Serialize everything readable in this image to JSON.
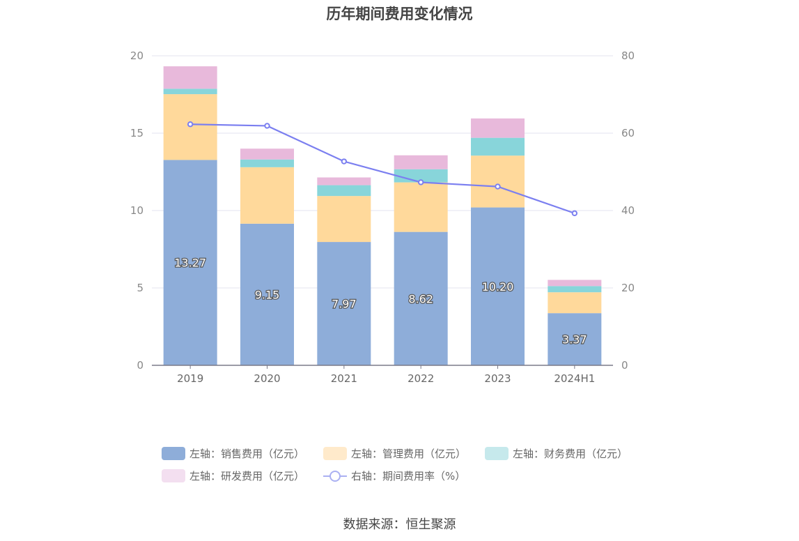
{
  "chart_data": {
    "type": "bar",
    "title": "历年期间费用变化情况",
    "categories": [
      "2019",
      "2020",
      "2021",
      "2022",
      "2023",
      "2024H1"
    ],
    "stacked": true,
    "y_left": {
      "ylim": [
        0,
        20
      ],
      "ticks": [
        "0",
        "5",
        "10",
        "15",
        "20"
      ]
    },
    "y_right": {
      "ylim": [
        0,
        80
      ],
      "ticks": [
        "0",
        "20",
        "40",
        "60",
        "80"
      ]
    },
    "grid": true,
    "legend_position": "bottom",
    "series": [
      {
        "name": "左轴：销售费用（亿元）",
        "axis": "left",
        "type": "bar",
        "color": "#8eadd9",
        "values": [
          13.27,
          9.15,
          7.97,
          8.62,
          10.2,
          3.37
        ],
        "labels": [
          "13.27",
          "9.15",
          "7.97",
          "8.62",
          "10.20",
          "3.37"
        ]
      },
      {
        "name": "左轴：管理费用（亿元）",
        "axis": "left",
        "type": "bar",
        "color": "#ffd99b",
        "values": [
          4.25,
          3.65,
          2.97,
          3.2,
          3.35,
          1.35
        ]
      },
      {
        "name": "左轴：财务费用（亿元）",
        "axis": "left",
        "type": "bar",
        "color": "#88d5da",
        "values": [
          0.35,
          0.5,
          0.7,
          0.85,
          1.15,
          0.4
        ]
      },
      {
        "name": "左轴：研发费用（亿元）",
        "axis": "left",
        "type": "bar",
        "color": "#e8b9db",
        "values": [
          1.45,
          0.7,
          0.5,
          0.9,
          1.25,
          0.4
        ]
      },
      {
        "name": "右轴：期间费用率（%）",
        "axis": "right",
        "type": "line",
        "color": "#7b7ff0",
        "values": [
          62.3,
          61.9,
          52.7,
          47.3,
          46.2,
          39.3
        ]
      }
    ]
  },
  "legend": {
    "items": [
      {
        "label": "左轴：销售费用（亿元）",
        "color": "#8eadd9"
      },
      {
        "label": "左轴：管理费用（亿元）",
        "color": "#ffeacb"
      },
      {
        "label": "左轴：财务费用（亿元）",
        "color": "#c6e9ec"
      },
      {
        "label": "左轴：研发费用（亿元）",
        "color": "#f3dff0"
      },
      {
        "label": "右轴：期间费用率（%）",
        "color": "#aab0f2"
      }
    ]
  },
  "source": "数据来源：恒生聚源"
}
